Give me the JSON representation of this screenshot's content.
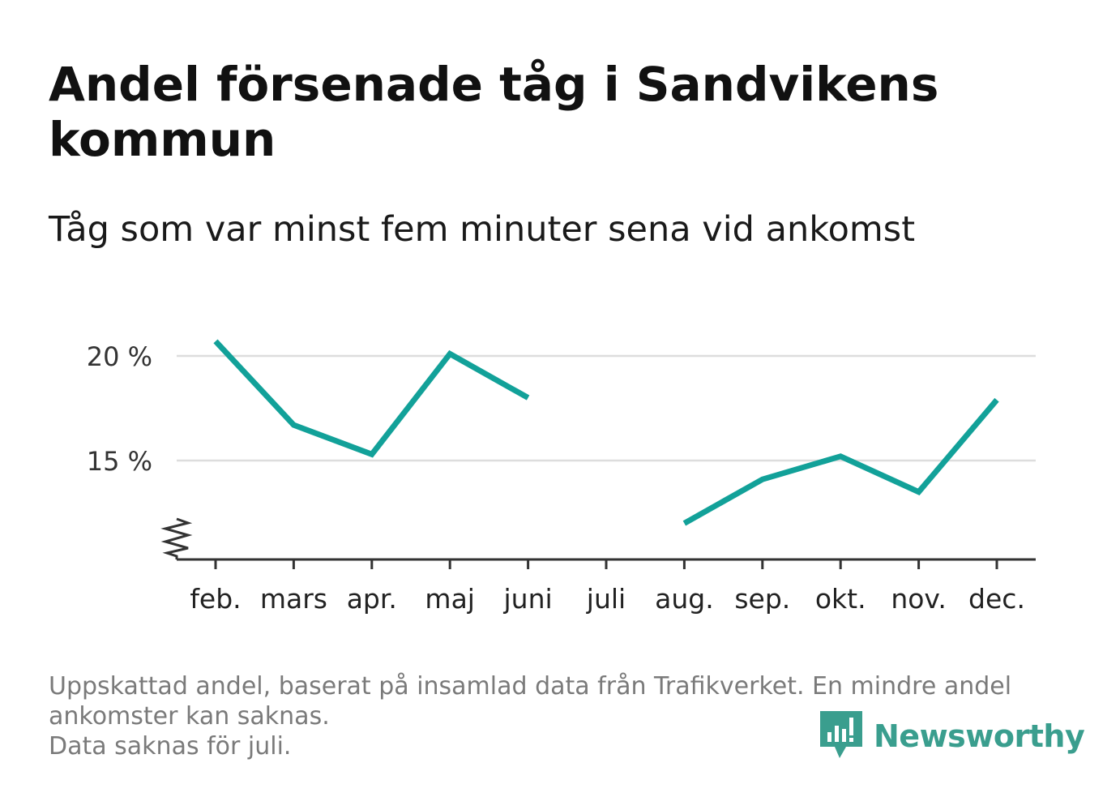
{
  "title": "Andel försenade tåg i Sandvikens kommun",
  "subtitle": "Tåg som var minst fem minuter sena vid ankomst",
  "footnote": {
    "line1": "Uppskattad andel, baserat på insamlad data från Trafikverket. En mindre andel",
    "line2": "ankomster kan saknas.",
    "line3": "Data saknas för juli."
  },
  "brand": {
    "name": "Newsworthy",
    "logo_icon": "bar-chart-speech-bubble-icon",
    "color": "#3a9e8e"
  },
  "chart_data": {
    "type": "line",
    "categories": [
      "feb.",
      "mars",
      "apr.",
      "maj",
      "juni",
      "juli",
      "aug.",
      "sep.",
      "okt.",
      "nov.",
      "dec."
    ],
    "series": [
      {
        "values": [
          20.7,
          16.7,
          15.3,
          20.1,
          18.0,
          null,
          12.0,
          14.1,
          15.2,
          13.5,
          17.9
        ]
      }
    ],
    "y_ticks": [
      {
        "value": 15,
        "label": "15 %"
      },
      {
        "value": 20,
        "label": "20 %"
      }
    ],
    "ylim": [
      10.5,
      21.0
    ],
    "axis_break": true,
    "grid": true,
    "line_color": "#12a199",
    "grid_color": "#dddddd",
    "axis_color": "#333333"
  }
}
